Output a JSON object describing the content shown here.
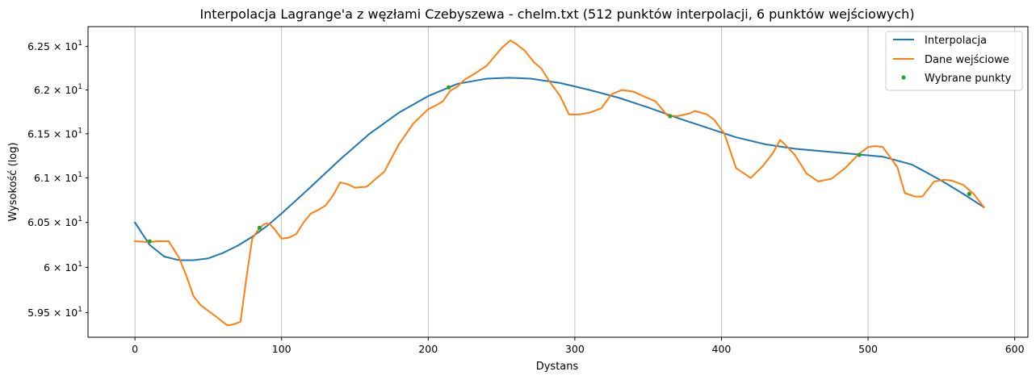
{
  "chart_data": {
    "type": "line",
    "title": "Interpolacja Lagrange'a z węzłami Czebyszewa - chelm.txt (512 punktów interpolacji, 6 punktów wejściowych)",
    "xlabel": "Dystans",
    "ylabel": "Wysokość (log)",
    "yscale": "log",
    "xlim": [
      -32,
      609
    ],
    "ylim": [
      59.23,
      62.73
    ],
    "grid": "vertical",
    "legend_position": "top-right",
    "x_ticks": [
      0,
      100,
      200,
      300,
      400,
      500,
      600
    ],
    "x_tick_labels": [
      "0",
      "100",
      "200",
      "300",
      "400",
      "500",
      "600"
    ],
    "y_ticks": [
      {
        "value": 59.5,
        "mantissa": "5.95",
        "base": "10",
        "exp": "1"
      },
      {
        "value": 60.0,
        "mantissa": "6",
        "base": "10",
        "exp": "1"
      },
      {
        "value": 60.5,
        "mantissa": "6.05",
        "base": "10",
        "exp": "1"
      },
      {
        "value": 61.0,
        "mantissa": "6.1",
        "base": "10",
        "exp": "1"
      },
      {
        "value": 61.5,
        "mantissa": "6.15",
        "base": "10",
        "exp": "1"
      },
      {
        "value": 62.0,
        "mantissa": "6.2",
        "base": "10",
        "exp": "1"
      },
      {
        "value": 62.5,
        "mantissa": "6.25",
        "base": "10",
        "exp": "1"
      }
    ],
    "series": [
      {
        "name": "Interpolacja",
        "kind": "line",
        "color": "#1f77b4",
        "x": [
          0,
          10,
          20,
          30,
          40,
          50,
          60,
          70,
          80,
          90,
          100,
          120,
          140,
          160,
          180,
          200,
          220,
          240,
          255,
          270,
          290,
          310,
          330,
          350,
          370,
          390,
          410,
          430,
          450,
          470,
          490,
          510,
          530,
          550,
          565,
          579
        ],
        "y": [
          60.5,
          60.25,
          60.12,
          60.08,
          60.08,
          60.1,
          60.16,
          60.24,
          60.34,
          60.46,
          60.6,
          60.9,
          61.21,
          61.5,
          61.74,
          61.93,
          62.07,
          62.13,
          62.14,
          62.13,
          62.08,
          62.0,
          61.91,
          61.8,
          61.68,
          61.57,
          61.46,
          61.38,
          61.33,
          61.3,
          61.27,
          61.24,
          61.15,
          60.97,
          60.82,
          60.67
        ]
      },
      {
        "name": "Dane wejściowe",
        "kind": "line",
        "color": "#ff7f0e",
        "x": [
          0,
          10,
          15,
          20,
          23,
          30,
          35,
          40,
          45,
          50,
          55,
          63,
          67,
          72,
          76,
          80,
          85,
          88,
          90,
          92,
          95,
          100,
          105,
          110,
          115,
          120,
          125,
          130,
          135,
          140,
          145,
          150,
          158,
          165,
          170,
          180,
          190,
          200,
          205,
          210,
          215,
          220,
          225,
          232,
          240,
          250,
          256,
          260,
          266,
          272,
          277,
          283,
          290,
          296,
          303,
          310,
          318,
          325,
          332,
          340,
          348,
          355,
          363,
          370,
          378,
          382,
          390,
          395,
          402,
          410,
          420,
          428,
          435,
          440,
          445,
          450,
          458,
          466,
          475,
          485,
          493,
          500,
          505,
          510,
          520,
          525,
          532,
          537,
          545,
          552,
          557,
          565,
          572,
          579
        ],
        "y": [
          60.29,
          60.28,
          60.29,
          60.29,
          60.29,
          60.11,
          59.91,
          59.68,
          59.58,
          59.52,
          59.46,
          59.36,
          59.37,
          59.4,
          59.88,
          60.32,
          60.44,
          60.48,
          60.49,
          60.48,
          60.43,
          60.32,
          60.33,
          60.37,
          60.5,
          60.6,
          60.64,
          60.69,
          60.8,
          60.95,
          60.93,
          60.89,
          60.9,
          61.0,
          61.07,
          61.38,
          61.62,
          61.78,
          61.82,
          61.87,
          61.99,
          62.04,
          62.12,
          62.19,
          62.28,
          62.48,
          62.57,
          62.53,
          62.45,
          62.32,
          62.25,
          62.09,
          61.93,
          61.72,
          61.72,
          61.74,
          61.79,
          61.95,
          62.0,
          61.98,
          61.92,
          61.87,
          61.71,
          61.7,
          61.73,
          61.76,
          61.72,
          61.66,
          61.5,
          61.11,
          61.0,
          61.13,
          61.28,
          61.43,
          61.35,
          61.26,
          61.05,
          60.96,
          60.99,
          61.12,
          61.26,
          61.35,
          61.36,
          61.35,
          61.12,
          60.83,
          60.79,
          60.79,
          60.96,
          60.98,
          60.97,
          60.92,
          60.82,
          60.67
        ]
      },
      {
        "name": "Wybrane punkty",
        "kind": "points",
        "color": "#2ca02c",
        "x": [
          10,
          85,
          214,
          365,
          494,
          569
        ],
        "y": [
          60.29,
          60.44,
          62.03,
          61.7,
          61.26,
          60.82
        ]
      }
    ]
  }
}
